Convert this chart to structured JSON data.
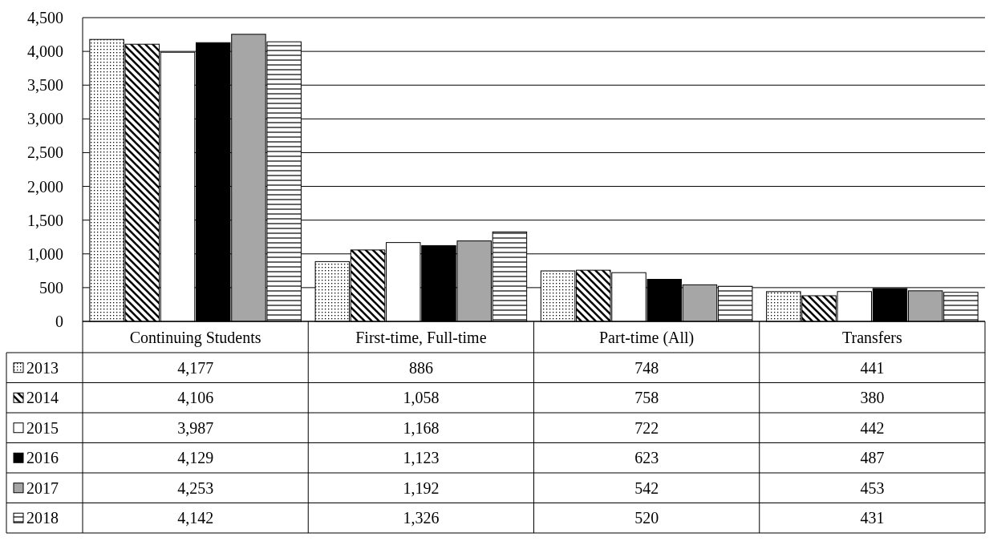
{
  "chart_data": {
    "type": "bar",
    "categories": [
      "Continuing Students",
      "First-time, Full-time",
      "Part-time (All)",
      "Transfers"
    ],
    "series": [
      {
        "name": "2013",
        "color": "#000000",
        "values": [
          4177,
          886,
          748,
          441
        ],
        "value_labels": [
          "4,177",
          "886",
          "748",
          "441"
        ]
      },
      {
        "name": "2014",
        "color": "#000000",
        "values": [
          4106,
          1058,
          758,
          380
        ],
        "value_labels": [
          "4,106",
          "1,058",
          "758",
          "380"
        ]
      },
      {
        "name": "2015",
        "color": "#ffffff",
        "values": [
          3987,
          1168,
          722,
          442
        ],
        "value_labels": [
          "3,987",
          "1,168",
          "722",
          "442"
        ]
      },
      {
        "name": "2016",
        "color": "#000000",
        "values": [
          4129,
          1123,
          623,
          487
        ],
        "value_labels": [
          "4,129",
          "1,123",
          "623",
          "487"
        ]
      },
      {
        "name": "2017",
        "color": "#a6a6a6",
        "values": [
          4253,
          1192,
          542,
          453
        ],
        "value_labels": [
          "4,253",
          "1,192",
          "542",
          "453"
        ]
      },
      {
        "name": "2018",
        "color": "#000000",
        "values": [
          4142,
          1326,
          520,
          431
        ],
        "value_labels": [
          "4,142",
          "1,326",
          "520",
          "431"
        ]
      }
    ],
    "ylim": [
      0,
      4500
    ],
    "yticks": [
      {
        "value": 0,
        "label": "0"
      },
      {
        "value": 500,
        "label": "500"
      },
      {
        "value": 1000,
        "label": "1,000"
      },
      {
        "value": 1500,
        "label": "1,500"
      },
      {
        "value": 2000,
        "label": "2,000"
      },
      {
        "value": 2500,
        "label": "2,500"
      },
      {
        "value": 3000,
        "label": "3,000"
      },
      {
        "value": 3500,
        "label": "3,500"
      },
      {
        "value": 4000,
        "label": "4,000"
      },
      {
        "value": 4500,
        "label": "4,500"
      }
    ],
    "grid": "y",
    "legend": "bottom"
  }
}
